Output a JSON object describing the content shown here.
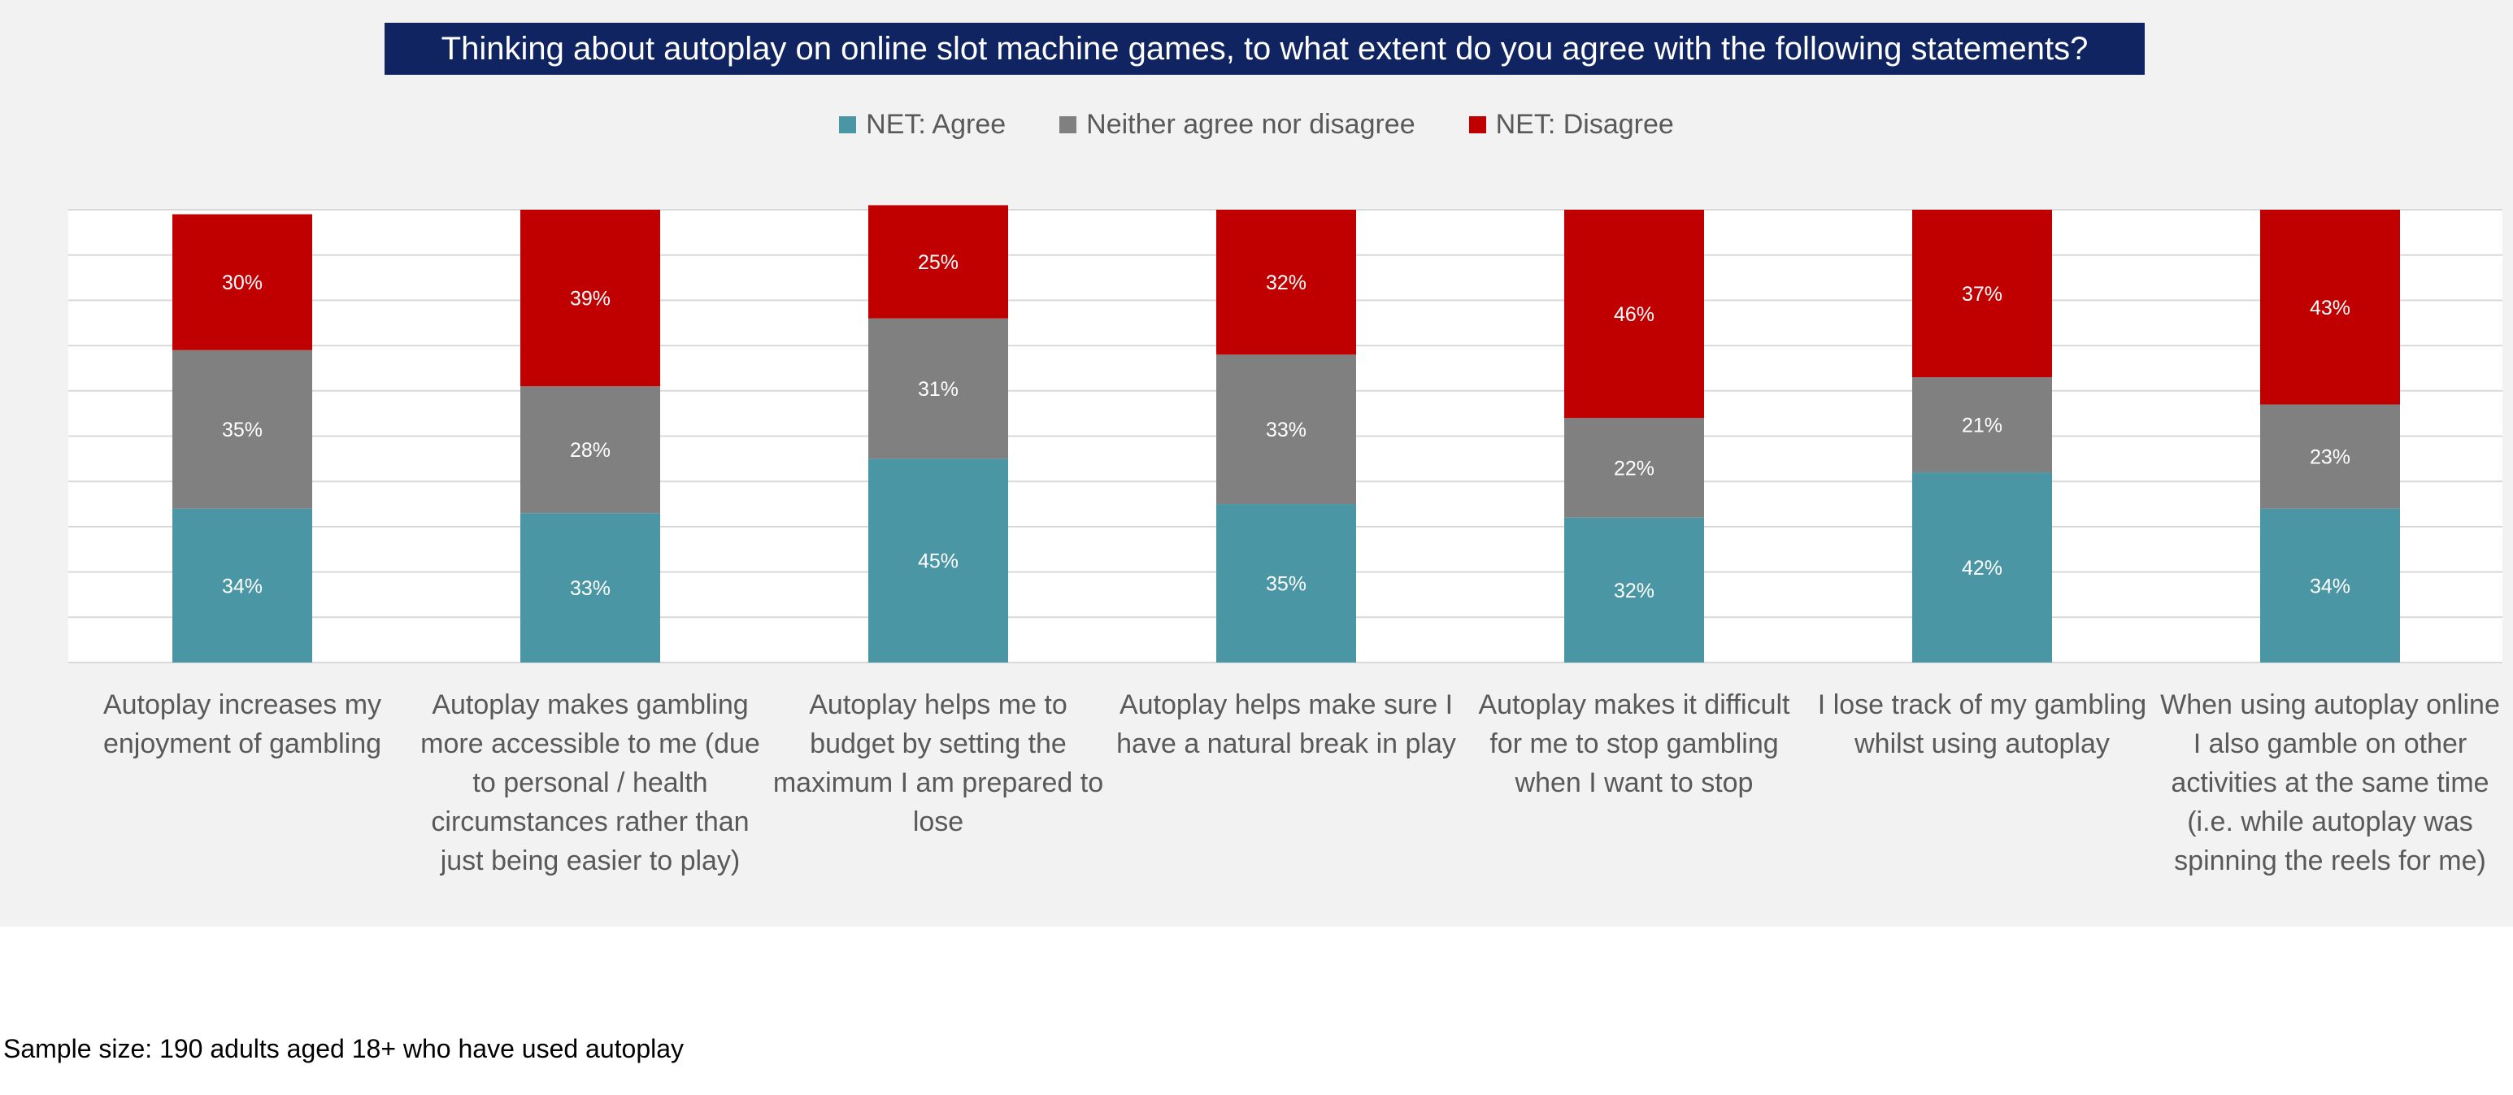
{
  "chart_data": {
    "type": "bar",
    "stacked": true,
    "title": "Thinking about autoplay on online slot machine games, to what extent do you agree with the following statements?",
    "categories": [
      "Autoplay increases my enjoyment of gambling",
      "Autoplay makes gambling more accessible to me (due to personal / health circumstances rather than just being easier to play)",
      "Autoplay helps me to budget by setting the maximum I am prepared to lose",
      "Autoplay helps make sure I have a natural break in play",
      "Autoplay makes it difficult for me to stop gambling when I want to stop",
      "I lose track of my gambling whilst using autoplay",
      "When using autoplay online I also gamble on other activities at the same time (i.e. while autoplay was spinning the reels for me)"
    ],
    "series": [
      {
        "name": "NET: Agree",
        "color": "#4a96a4",
        "values": [
          34,
          33,
          45,
          35,
          32,
          42,
          34
        ]
      },
      {
        "name": "Neither agree nor disagree",
        "color": "#808080",
        "values": [
          35,
          28,
          31,
          33,
          22,
          21,
          23
        ]
      },
      {
        "name": "NET: Disagree",
        "color": "#c00000",
        "values": [
          30,
          39,
          25,
          32,
          46,
          37,
          43
        ]
      }
    ],
    "value_suffix": "%",
    "ylim": [
      0,
      100
    ],
    "grid": true,
    "legend_position": "top-center",
    "xlabel": "",
    "ylabel": ""
  },
  "footer": {
    "sample_note": "Sample size: 190 adults aged 18+ who have used autoplay"
  }
}
